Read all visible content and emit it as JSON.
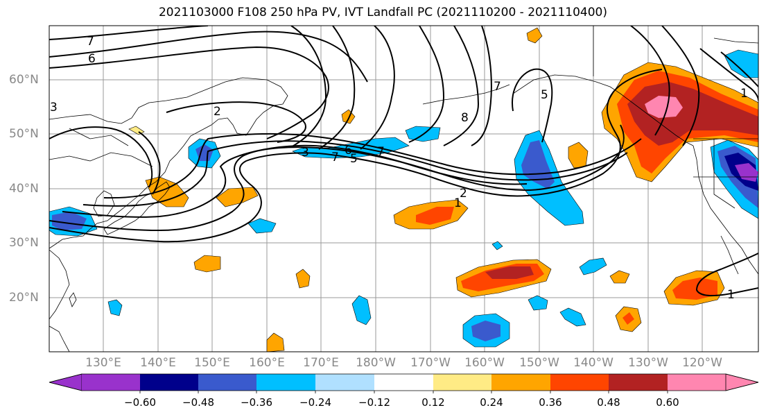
{
  "title": "2021103000 F108 250 hPa PV, IVT Landfall PC (2021110200 - 2021110400)",
  "map": {
    "lon_labels": [
      "130°E",
      "140°E",
      "150°E",
      "160°E",
      "170°E",
      "180°W",
      "170°W",
      "160°W",
      "150°W",
      "140°W",
      "130°W",
      "120°W"
    ],
    "lat_labels": [
      "60°N",
      "50°N",
      "40°N",
      "30°N",
      "20°N"
    ],
    "contour_labels": [
      "7",
      "6",
      "2",
      "3",
      "8",
      "5",
      "7",
      "6",
      "7",
      "5",
      "7",
      "2",
      "1",
      "1",
      "3",
      "1"
    ],
    "fill_colors": [
      "#9932cc",
      "#00008b",
      "#3a5acd",
      "#00bfff",
      "#b0e0ff",
      "#ffffff",
      "#ffeb85",
      "#ffa500",
      "#ff4500",
      "#b22222",
      "#ff86b0"
    ]
  },
  "colorbar": {
    "ticks": [
      "−0.60",
      "−0.48",
      "−0.36",
      "−0.24",
      "−0.12",
      "0.12",
      "0.24",
      "0.36",
      "0.48",
      "0.60"
    ]
  }
}
